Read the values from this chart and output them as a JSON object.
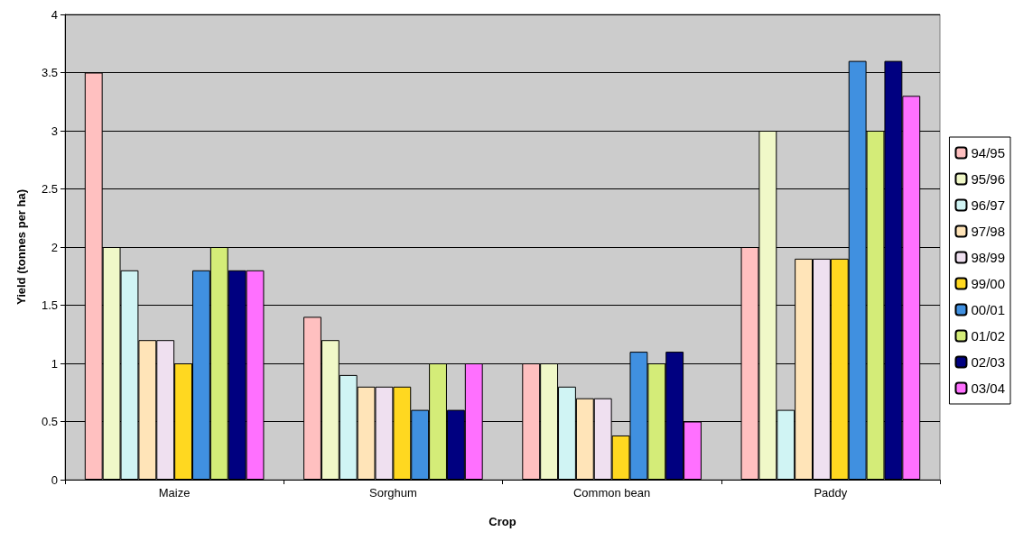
{
  "chart_data": {
    "type": "bar",
    "xlabel": "Crop",
    "ylabel": "Yield (tonnes per ha)",
    "categories": [
      "Maize",
      "Sorghum",
      "Common bean",
      "Paddy"
    ],
    "series": [
      {
        "name": "94/95",
        "color": "#ffc0c0",
        "values": [
          3.5,
          1.4,
          1.0,
          2.0
        ]
      },
      {
        "name": "95/96",
        "color": "#f0f8c8",
        "values": [
          2.0,
          1.2,
          1.0,
          3.0
        ]
      },
      {
        "name": "96/97",
        "color": "#d0f4f4",
        "values": [
          1.8,
          0.9,
          0.8,
          0.6
        ]
      },
      {
        "name": "97/98",
        "color": "#ffe4b8",
        "values": [
          1.2,
          0.8,
          0.7,
          1.9
        ]
      },
      {
        "name": "98/99",
        "color": "#efe0f0",
        "values": [
          1.2,
          0.8,
          0.7,
          1.9
        ]
      },
      {
        "name": "99/00",
        "color": "#ffd820",
        "values": [
          1.0,
          0.8,
          0.38,
          1.9
        ]
      },
      {
        "name": "00/01",
        "color": "#4090e0",
        "values": [
          1.8,
          0.6,
          1.1,
          3.6
        ]
      },
      {
        "name": "01/02",
        "color": "#d4ec78",
        "values": [
          2.0,
          1.0,
          1.0,
          3.0
        ]
      },
      {
        "name": "02/03",
        "color": "#000080",
        "values": [
          1.8,
          0.6,
          1.1,
          3.6
        ]
      },
      {
        "name": "03/04",
        "color": "#ff70ff",
        "values": [
          1.8,
          1.0,
          0.5,
          3.3
        ]
      }
    ],
    "ylim": [
      0,
      4
    ],
    "yticks": [
      0,
      0.5,
      1,
      1.5,
      2,
      2.5,
      3,
      3.5,
      4
    ],
    "grid": "y",
    "legend": "right"
  }
}
